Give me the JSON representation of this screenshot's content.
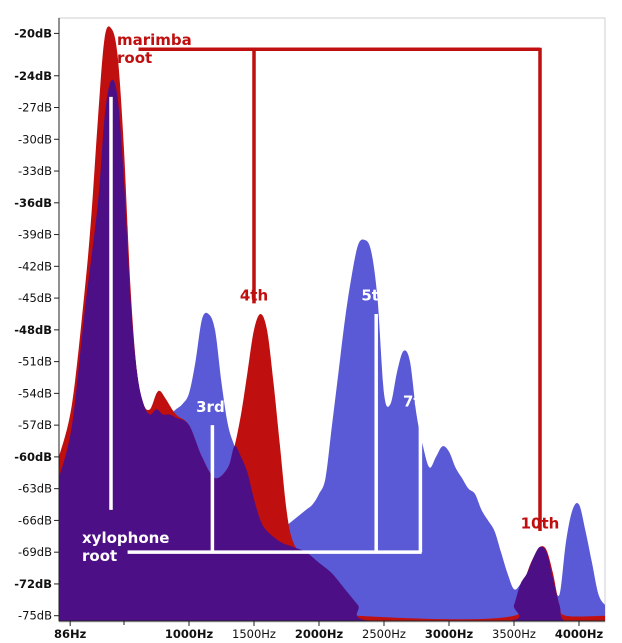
{
  "chart_data": {
    "type": "area",
    "y_ticks": [
      {
        "value": -20,
        "label": "-20dB",
        "bold": true
      },
      {
        "value": -24,
        "label": "-24dB",
        "bold": true
      },
      {
        "value": -27,
        "label": "-27dB",
        "bold": false
      },
      {
        "value": -30,
        "label": "-30dB",
        "bold": false
      },
      {
        "value": -33,
        "label": "-33dB",
        "bold": false
      },
      {
        "value": -36,
        "label": "-36dB",
        "bold": true
      },
      {
        "value": -39,
        "label": "-39dB",
        "bold": false
      },
      {
        "value": -42,
        "label": "-42dB",
        "bold": false
      },
      {
        "value": -45,
        "label": "-45dB",
        "bold": false
      },
      {
        "value": -48,
        "label": "-48dB",
        "bold": true
      },
      {
        "value": -51,
        "label": "-51dB",
        "bold": false
      },
      {
        "value": -54,
        "label": "-54dB",
        "bold": false
      },
      {
        "value": -57,
        "label": "-57dB",
        "bold": false
      },
      {
        "value": -60,
        "label": "-60dB",
        "bold": true
      },
      {
        "value": -63,
        "label": "-63dB",
        "bold": false
      },
      {
        "value": -66,
        "label": "-66dB",
        "bold": false
      },
      {
        "value": -69,
        "label": "-69dB",
        "bold": false
      },
      {
        "value": -72,
        "label": "-72dB",
        "bold": true
      },
      {
        "value": -75,
        "label": "-75dB",
        "bold": false
      }
    ],
    "x_ticks": [
      {
        "value": 86,
        "label": "86Hz",
        "bold": true
      },
      {
        "value": 1000,
        "label": "1000Hz",
        "bold": true
      },
      {
        "value": 1500,
        "label": "1500Hz",
        "bold": false
      },
      {
        "value": 2000,
        "label": "2000Hz",
        "bold": true
      },
      {
        "value": 2500,
        "label": "2500Hz",
        "bold": false
      },
      {
        "value": 3000,
        "label": "3000Hz",
        "bold": true
      },
      {
        "value": 3500,
        "label": "3500Hz",
        "bold": false
      },
      {
        "value": 4000,
        "label": "4000Hz",
        "bold": true
      }
    ],
    "x_minor_ticks": [
      500
    ],
    "xlim": [
      0,
      4200
    ],
    "ylim": [
      -75.5,
      -19.3
    ],
    "grid": false,
    "series": [
      {
        "color": "#5a5ad6",
        "points": [
          [
            0,
            -62
          ],
          [
            100,
            -57
          ],
          [
            200,
            -46
          ],
          [
            300,
            -36
          ],
          [
            350,
            -28
          ],
          [
            400,
            -24.5
          ],
          [
            450,
            -26
          ],
          [
            500,
            -34
          ],
          [
            550,
            -45
          ],
          [
            600,
            -52
          ],
          [
            650,
            -55
          ],
          [
            700,
            -56
          ],
          [
            750,
            -55.5
          ],
          [
            800,
            -56
          ],
          [
            850,
            -56
          ],
          [
            900,
            -55.5
          ],
          [
            950,
            -55
          ],
          [
            1000,
            -54
          ],
          [
            1050,
            -51
          ],
          [
            1100,
            -47
          ],
          [
            1150,
            -46.5
          ],
          [
            1200,
            -48
          ],
          [
            1250,
            -53
          ],
          [
            1300,
            -57
          ],
          [
            1350,
            -59
          ],
          [
            1400,
            -61
          ],
          [
            1450,
            -60
          ],
          [
            1500,
            -59
          ],
          [
            1550,
            -61
          ],
          [
            1600,
            -64
          ],
          [
            1650,
            -66
          ],
          [
            1700,
            -67
          ],
          [
            1750,
            -66.5
          ],
          [
            1800,
            -66
          ],
          [
            1850,
            -65.5
          ],
          [
            1900,
            -65
          ],
          [
            1950,
            -64.5
          ],
          [
            2000,
            -63.5
          ],
          [
            2050,
            -62
          ],
          [
            2100,
            -57
          ],
          [
            2150,
            -52
          ],
          [
            2200,
            -47
          ],
          [
            2250,
            -43
          ],
          [
            2300,
            -40
          ],
          [
            2350,
            -39.5
          ],
          [
            2400,
            -40.5
          ],
          [
            2450,
            -45
          ],
          [
            2500,
            -54
          ],
          [
            2550,
            -55
          ],
          [
            2600,
            -52
          ],
          [
            2650,
            -50
          ],
          [
            2700,
            -51
          ],
          [
            2750,
            -56
          ],
          [
            2800,
            -59
          ],
          [
            2850,
            -61
          ],
          [
            2900,
            -60
          ],
          [
            2950,
            -59
          ],
          [
            3000,
            -59.5
          ],
          [
            3050,
            -61
          ],
          [
            3100,
            -62
          ],
          [
            3150,
            -63
          ],
          [
            3200,
            -63.5
          ],
          [
            3250,
            -65
          ],
          [
            3300,
            -66
          ],
          [
            3350,
            -67
          ],
          [
            3400,
            -69
          ],
          [
            3450,
            -71
          ],
          [
            3500,
            -72.5
          ],
          [
            3550,
            -72
          ],
          [
            3600,
            -71
          ],
          [
            3650,
            -69.5
          ],
          [
            3700,
            -68.5
          ],
          [
            3750,
            -69
          ],
          [
            3800,
            -71.5
          ],
          [
            3850,
            -73
          ],
          [
            3900,
            -68
          ],
          [
            3950,
            -65
          ],
          [
            4000,
            -64.5
          ],
          [
            4050,
            -67
          ],
          [
            4100,
            -70
          ],
          [
            4150,
            -73
          ],
          [
            4200,
            -74
          ]
        ]
      },
      {
        "color": "#c00f0f",
        "points": [
          [
            0,
            -60
          ],
          [
            100,
            -55
          ],
          [
            200,
            -44
          ],
          [
            250,
            -37
          ],
          [
            300,
            -28
          ],
          [
            350,
            -20.5
          ],
          [
            400,
            -19.5
          ],
          [
            450,
            -22
          ],
          [
            500,
            -31
          ],
          [
            550,
            -44
          ],
          [
            600,
            -52
          ],
          [
            650,
            -55
          ],
          [
            700,
            -55.5
          ],
          [
            750,
            -54
          ],
          [
            780,
            -53.8
          ],
          [
            820,
            -54.5
          ],
          [
            900,
            -56
          ],
          [
            1000,
            -57
          ],
          [
            1100,
            -60
          ],
          [
            1200,
            -62
          ],
          [
            1300,
            -61
          ],
          [
            1350,
            -59
          ],
          [
            1400,
            -56
          ],
          [
            1450,
            -52
          ],
          [
            1500,
            -48
          ],
          [
            1550,
            -46.5
          ],
          [
            1600,
            -48
          ],
          [
            1650,
            -53
          ],
          [
            1700,
            -59
          ],
          [
            1750,
            -65
          ],
          [
            1800,
            -68
          ],
          [
            1900,
            -70
          ],
          [
            2000,
            -72
          ],
          [
            2100,
            -73
          ],
          [
            2200,
            -74
          ],
          [
            2300,
            -75
          ],
          [
            3500,
            -75
          ],
          [
            3600,
            -71
          ],
          [
            3650,
            -69.5
          ],
          [
            3700,
            -68.5
          ],
          [
            3750,
            -68.8
          ],
          [
            3800,
            -71
          ],
          [
            3850,
            -74
          ],
          [
            3900,
            -75
          ],
          [
            4200,
            -75
          ]
        ]
      },
      {
        "color": "#4d0f86",
        "points": [
          [
            0,
            -62
          ],
          [
            100,
            -57
          ],
          [
            200,
            -46
          ],
          [
            300,
            -36
          ],
          [
            350,
            -28
          ],
          [
            400,
            -24.5
          ],
          [
            450,
            -26
          ],
          [
            500,
            -34
          ],
          [
            550,
            -45
          ],
          [
            600,
            -52
          ],
          [
            650,
            -55
          ],
          [
            700,
            -56
          ],
          [
            750,
            -55.5
          ],
          [
            800,
            -56
          ],
          [
            850,
            -56
          ],
          [
            900,
            -56.3
          ],
          [
            1000,
            -57
          ],
          [
            1100,
            -60
          ],
          [
            1200,
            -62
          ],
          [
            1300,
            -61
          ],
          [
            1350,
            -59
          ],
          [
            1400,
            -60
          ],
          [
            1450,
            -61.5
          ],
          [
            1500,
            -64
          ],
          [
            1550,
            -66
          ],
          [
            1600,
            -67
          ],
          [
            1700,
            -68
          ],
          [
            1800,
            -68.5
          ],
          [
            1900,
            -69
          ],
          [
            2000,
            -70
          ],
          [
            2100,
            -71
          ],
          [
            2200,
            -72.5
          ],
          [
            2300,
            -74
          ],
          [
            2400,
            -75.5
          ],
          [
            3450,
            -75.5
          ],
          [
            3500,
            -74
          ],
          [
            3550,
            -72
          ],
          [
            3600,
            -71
          ],
          [
            3650,
            -69.5
          ],
          [
            3700,
            -68.5
          ],
          [
            3750,
            -69
          ],
          [
            3800,
            -71.5
          ],
          [
            3850,
            -74
          ],
          [
            3900,
            -75.5
          ],
          [
            4200,
            -75.5
          ]
        ]
      }
    ],
    "annotations": {
      "marimba_root": "marimba\nroot",
      "xylophone_root": "xylophone\nroot",
      "labels_red": [
        {
          "text": "4th",
          "x": 1500,
          "y": -46
        },
        {
          "text": "10th",
          "x": 3700,
          "y": -67.5
        }
      ],
      "labels_white": [
        {
          "text": "3rd",
          "x": 1180,
          "y": -56.5
        },
        {
          "text": "5th",
          "x": 2450,
          "y": -46
        },
        {
          "text": "7th",
          "x": 2770,
          "y": -56
        }
      ],
      "red_bracket": {
        "y": -21.5,
        "x_left": 1500,
        "x_right": 3700,
        "x_start_label": 550,
        "drops": [
          {
            "x": 1500,
            "to": -45.5
          },
          {
            "x": 3700,
            "to": -67
          }
        ]
      },
      "white_bracket": {
        "y": -69,
        "x_left": 420,
        "x_right": 2790,
        "verticals": [
          {
            "x": 400,
            "top": -26,
            "bottom": -65
          },
          {
            "x": 1180,
            "top": -57,
            "bottom": -69
          },
          {
            "x": 2440,
            "top": -46.5,
            "bottom": -69
          },
          {
            "x": 2780,
            "top": -57,
            "bottom": -69
          }
        ]
      }
    },
    "colors": {
      "xylophone": "#5a5ad6",
      "marimba": "#c00f0f",
      "overlap": "#4d0f86",
      "marimba_text": "#c00f0f",
      "xylophone_text": "#ffffff"
    }
  }
}
